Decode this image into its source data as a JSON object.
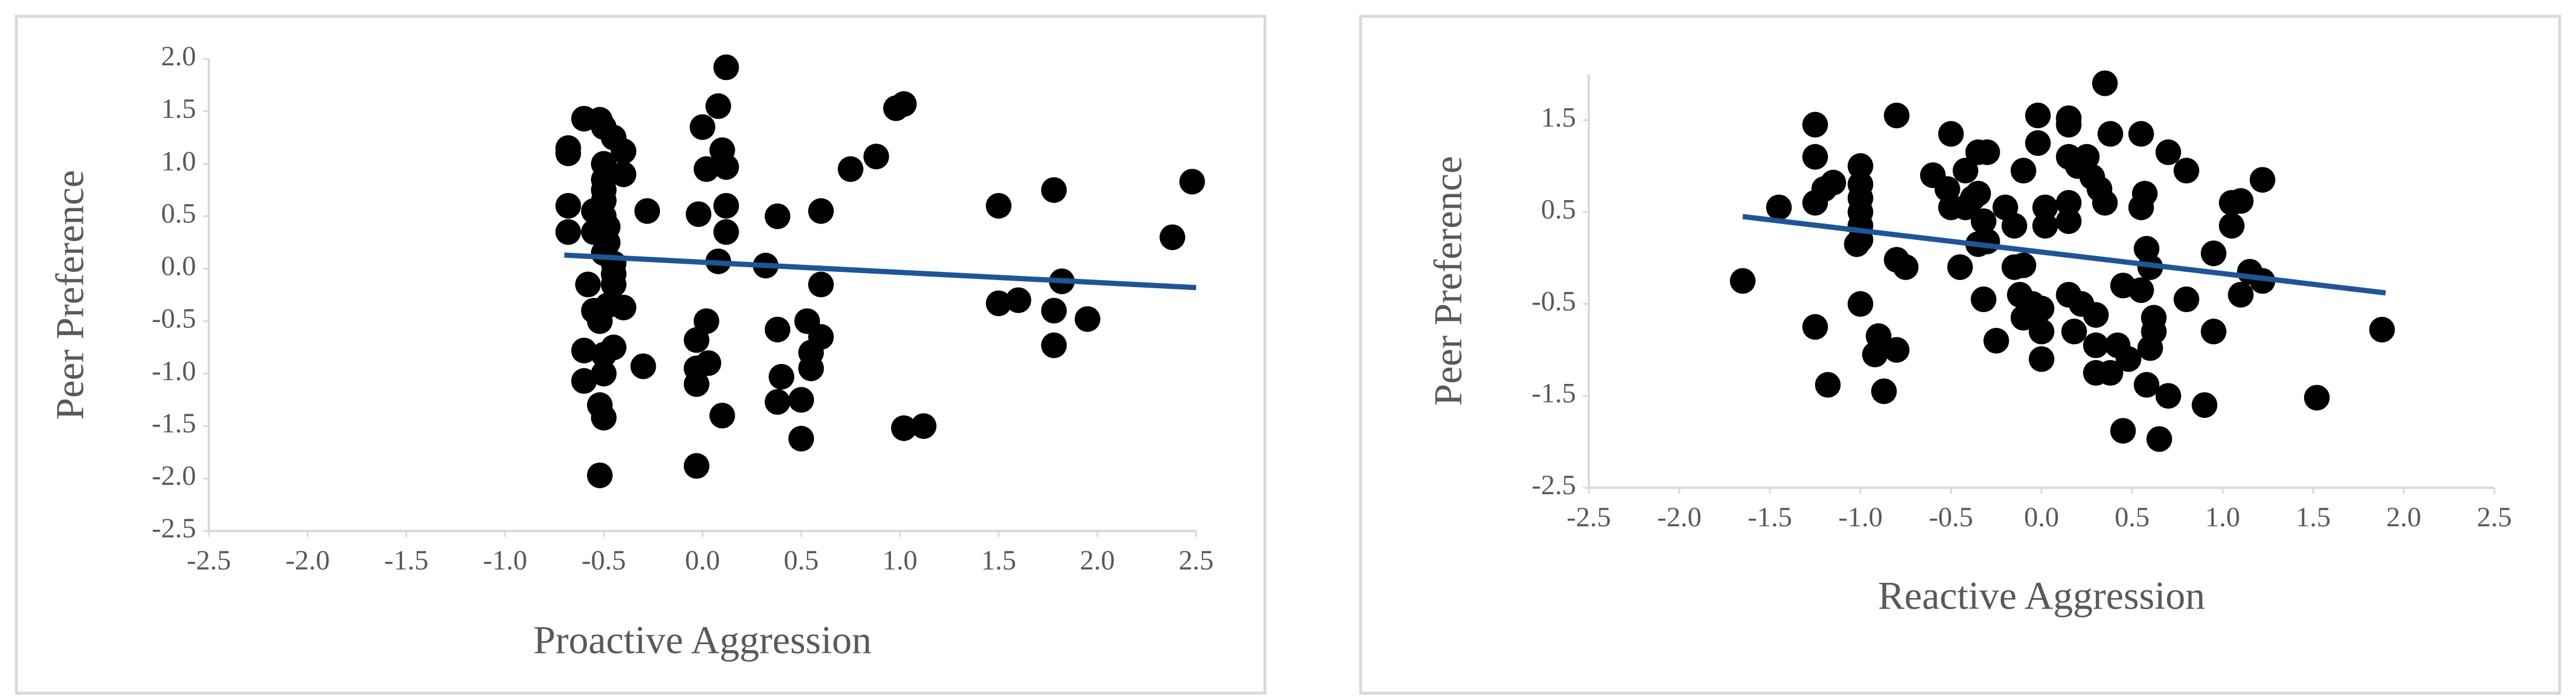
{
  "chart_data": [
    {
      "type": "scatter",
      "x_label": "Proactive Aggression",
      "y_label": "Peer Preference",
      "color": "#000000",
      "x": [
        -0.68,
        -0.68,
        -0.68,
        -0.68,
        -0.6,
        -0.55,
        -0.55,
        -0.52,
        -0.5,
        -0.45,
        -0.4,
        -0.4,
        -0.5,
        -0.5,
        -0.5,
        -0.5,
        -0.5,
        -0.48,
        -0.48,
        -0.5,
        -0.45,
        -0.45,
        -0.45,
        -0.58,
        -0.55,
        -0.52,
        -0.48,
        -0.4,
        -0.6,
        -0.5,
        -0.45,
        -0.5,
        -0.6,
        -0.52,
        -0.5,
        -0.52,
        -0.3,
        -0.28,
        0.0,
        0.02,
        0.08,
        0.1,
        0.12,
        0.12,
        -0.02,
        0.12,
        0.12,
        0.08,
        0.02,
        -0.03,
        -0.03,
        0.03,
        -0.03,
        0.1,
        -0.03,
        0.32,
        0.38,
        0.38,
        0.4,
        0.38,
        0.5,
        0.5,
        0.53,
        0.55,
        0.55,
        0.6,
        0.6,
        0.6,
        0.75,
        0.88,
        0.98,
        1.02,
        1.02,
        1.12,
        1.5,
        1.5,
        1.6,
        1.78,
        1.78,
        1.78,
        1.82,
        1.95,
        2.38,
        2.48
      ],
      "values": [
        1.15,
        1.1,
        0.6,
        0.35,
        1.43,
        0.55,
        0.35,
        1.42,
        1.35,
        1.25,
        1.12,
        0.9,
        1.0,
        0.85,
        0.75,
        0.65,
        0.5,
        0.4,
        0.25,
        0.15,
        0.05,
        -0.05,
        -0.15,
        -0.15,
        -0.4,
        -0.5,
        -0.35,
        -0.37,
        -0.78,
        -0.82,
        -0.75,
        -1.0,
        -1.07,
        -1.3,
        -1.42,
        -1.97,
        -0.93,
        0.55,
        1.35,
        0.95,
        1.55,
        1.13,
        0.97,
        1.92,
        0.52,
        0.6,
        0.35,
        0.07,
        -0.5,
        -0.68,
        -0.95,
        -0.9,
        -1.1,
        -1.4,
        -1.88,
        0.03,
        0.5,
        -0.58,
        -1.03,
        -1.27,
        -1.25,
        -1.62,
        -0.5,
        -0.8,
        -0.95,
        0.55,
        -0.15,
        -0.65,
        0.95,
        1.07,
        1.53,
        1.57,
        -1.52,
        -1.5,
        0.6,
        -0.33,
        -0.3,
        0.75,
        -0.4,
        -0.73,
        -0.12,
        -0.48,
        0.3,
        0.83
      ],
      "trendline": {
        "x": [
          -0.7,
          2.5
        ],
        "values": [
          0.13,
          -0.18
        ],
        "color": "#1f5597"
      },
      "xlim": [
        -2.5,
        2.5
      ],
      "xticks": [
        {
          "value": -2.5,
          "label": "-2.5"
        },
        {
          "value": -2,
          "label": "-2.0"
        },
        {
          "value": -1.5,
          "label": "-1.5"
        },
        {
          "value": -1,
          "label": "-1.0"
        },
        {
          "value": -0.5,
          "label": "-0.5"
        },
        {
          "value": 0,
          "label": "0.0"
        },
        0.5,
        {
          "value": 1,
          "label": "1.0"
        },
        1.5,
        {
          "value": 2,
          "label": "2.0"
        },
        2.5
      ],
      "ylim": [
        -2.5,
        2
      ],
      "yticks": [
        {
          "value": -2.5,
          "label": "-2.5"
        },
        {
          "value": -2,
          "label": "-2.0"
        },
        {
          "value": -1.5,
          "label": "-1.5"
        },
        {
          "value": -1,
          "label": "-1.0"
        },
        {
          "value": -0.5,
          "label": "-0.5"
        },
        {
          "value": 0,
          "label": "0.0"
        },
        0.5,
        {
          "value": 1,
          "label": "1.0"
        },
        1.5,
        {
          "value": 2,
          "label": "2.0"
        }
      ]
    },
    {
      "type": "scatter",
      "x_label": "Reactive Aggression",
      "y_label": "Peer Preference",
      "color": "#000000",
      "x": [
        -1.65,
        -1.45,
        -1.25,
        -1.25,
        -1.25,
        -1.2,
        -1.15,
        -1.25,
        -1.18,
        -1.0,
        -1.0,
        -1.0,
        -1.0,
        -1.0,
        -1.0,
        -1.02,
        -1.0,
        -0.9,
        -0.92,
        -0.87,
        -0.8,
        -0.8,
        -0.75,
        -0.8,
        -0.6,
        -0.52,
        -0.5,
        -0.5,
        -0.42,
        -0.42,
        -0.38,
        -0.35,
        -0.35,
        -0.3,
        -0.32,
        -0.45,
        -0.35,
        -0.3,
        -0.32,
        -0.25,
        -0.2,
        -0.15,
        -0.15,
        -0.12,
        -0.1,
        -0.1,
        -0.1,
        -0.05,
        -0.02,
        -0.02,
        0.0,
        0.0,
        0.0,
        0.02,
        0.02,
        0.15,
        0.15,
        0.15,
        0.15,
        0.15,
        0.15,
        0.18,
        0.2,
        0.22,
        0.25,
        0.28,
        0.3,
        0.3,
        0.3,
        0.32,
        0.35,
        0.35,
        0.38,
        0.38,
        0.42,
        0.45,
        0.48,
        0.45,
        0.55,
        0.55,
        0.55,
        0.57,
        0.58,
        0.6,
        0.58,
        0.6,
        0.62,
        0.62,
        0.65,
        0.7,
        0.7,
        0.8,
        0.8,
        0.9,
        0.95,
        0.95,
        1.05,
        1.05,
        1.1,
        1.1,
        1.15,
        1.22,
        1.22,
        1.52,
        1.88
      ],
      "values": [
        -0.25,
        0.55,
        1.45,
        1.1,
        0.6,
        0.75,
        0.82,
        -0.75,
        -1.38,
        1.0,
        0.8,
        0.65,
        0.5,
        0.35,
        0.2,
        0.15,
        -0.5,
        -0.85,
        -1.05,
        -1.45,
        -1.0,
        -0.02,
        -0.1,
        1.55,
        0.9,
        0.75,
        0.55,
        1.35,
        0.95,
        0.55,
        0.65,
        1.15,
        0.7,
        1.15,
        0.4,
        -0.1,
        0.15,
        0.18,
        -0.45,
        -0.9,
        0.55,
        0.35,
        -0.1,
        -0.4,
        0.95,
        -0.08,
        -0.65,
        -0.5,
        1.55,
        1.25,
        -0.55,
        -0.8,
        -1.1,
        0.55,
        0.35,
        1.45,
        1.52,
        1.1,
        0.4,
        0.6,
        -0.4,
        -0.8,
        1.0,
        -0.5,
        1.1,
        0.88,
        -0.62,
        -0.95,
        -1.25,
        0.75,
        1.9,
        0.6,
        1.35,
        -1.25,
        -0.95,
        -0.3,
        -1.1,
        -1.88,
        0.55,
        1.35,
        -0.35,
        0.7,
        0.1,
        -0.1,
        -1.38,
        -0.98,
        -0.65,
        -0.8,
        -1.97,
        1.15,
        -1.5,
        0.95,
        -0.45,
        -1.6,
        0.05,
        -0.8,
        0.6,
        0.35,
        0.62,
        -0.4,
        -0.15,
        -0.25,
        0.85,
        -1.52,
        -0.78
      ],
      "trendline": {
        "x": [
          -1.65,
          1.9
        ],
        "values": [
          0.45,
          -0.38
        ],
        "color": "#1f5597"
      },
      "xlim": [
        -2.5,
        2.5
      ],
      "xticks": [
        {
          "value": -2.5,
          "label": "-2.5"
        },
        {
          "value": -2,
          "label": "-2.0"
        },
        {
          "value": -1.5,
          "label": "-1.5"
        },
        {
          "value": -1,
          "label": "-1.0"
        },
        {
          "value": -0.5,
          "label": "-0.5"
        },
        {
          "value": 0,
          "label": "0.0"
        },
        0.5,
        {
          "value": 1,
          "label": "1.0"
        },
        1.5,
        {
          "value": 2,
          "label": "2.0"
        },
        2.5
      ],
      "ylim": [
        -2.5,
        2
      ],
      "yticks": [
        {
          "value": -2.5,
          "label": "-2.5"
        },
        {
          "value": -1.5,
          "label": "-1.5"
        },
        {
          "value": -0.5,
          "label": "-0.5"
        },
        0.5,
        1.5
      ]
    }
  ]
}
